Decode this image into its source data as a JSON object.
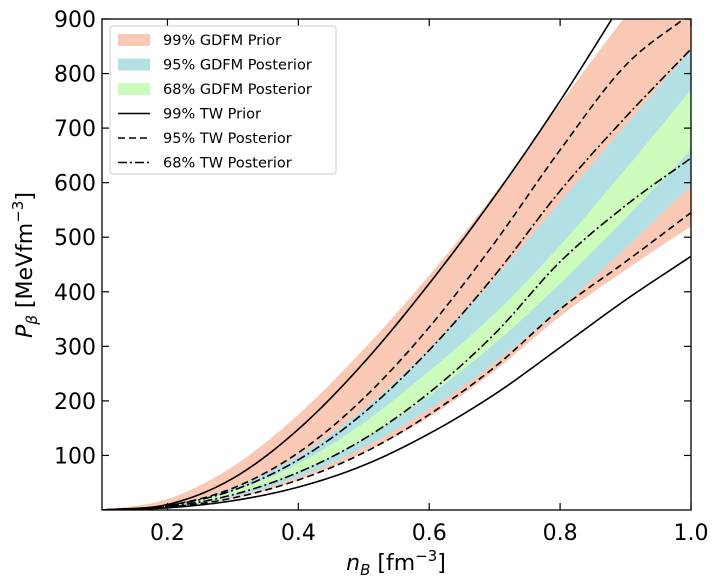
{
  "chart_data": {
    "type": "area",
    "xlabel": {
      "main": "n",
      "sub": "B",
      "unit_open": " [fm",
      "unit_sup": "−3",
      "unit_close": "]"
    },
    "ylabel": {
      "main": "P",
      "sub": "β",
      "unit_open": " [MeVfm",
      "unit_sup": "−3",
      "unit_close": "]"
    },
    "xlim": [
      0.1,
      1.0
    ],
    "ylim": [
      0,
      900
    ],
    "xticks": [
      0.2,
      0.4,
      0.6,
      0.8,
      1.0
    ],
    "xtick_labels": [
      "0.2",
      "0.4",
      "0.6",
      "0.8",
      "1.0"
    ],
    "yticks": [
      100,
      200,
      300,
      400,
      500,
      600,
      700,
      800,
      900
    ],
    "ytick_labels": [
      "100",
      "200",
      "300",
      "400",
      "500",
      "600",
      "700",
      "800",
      "900"
    ],
    "grid": false,
    "legend_position": "top-left",
    "x": [
      0.1,
      0.2,
      0.3,
      0.4,
      0.5,
      0.6,
      0.7,
      0.8,
      0.9,
      1.0
    ],
    "bands": [
      {
        "name": "99% GDFM Prior",
        "color": "#f9c9b6",
        "lower": [
          0,
          5,
          20,
          55,
          105,
          170,
          255,
          355,
          440,
          520
        ],
        "upper": [
          0,
          20,
          80,
          175,
          295,
          430,
          580,
          745,
          905,
          1050
        ]
      },
      {
        "name": "95% GDFM Posterior",
        "color": "#b3e0e4",
        "lower": [
          0,
          5,
          24,
          60,
          115,
          185,
          270,
          370,
          480,
          595
        ],
        "upper": [
          0,
          10,
          40,
          100,
          185,
          295,
          425,
          565,
          705,
          845
        ]
      },
      {
        "name": "68% GDFM Posterior",
        "color": "#ccfbbc",
        "lower": [
          0,
          6,
          28,
          70,
          130,
          210,
          305,
          415,
          535,
          660
        ],
        "upper": [
          0,
          8,
          35,
          85,
          160,
          255,
          360,
          485,
          625,
          770
        ]
      }
    ],
    "lines": [
      {
        "name": "99% TW Prior",
        "dash": "solid",
        "curves": [
          [
            0,
            10,
            58,
            148,
            270,
            415,
            575,
            750,
            940,
            1130
          ],
          [
            0,
            4,
            17,
            42,
            82,
            140,
            212,
            298,
            385,
            465
          ]
        ]
      },
      {
        "name": "95% TW Posterior",
        "dash": "dashed",
        "curves": [
          [
            0,
            8,
            40,
            105,
            205,
            335,
            490,
            660,
            815,
            910
          ],
          [
            0,
            5,
            22,
            55,
            105,
            175,
            262,
            368,
            455,
            545
          ]
        ]
      },
      {
        "name": "68% TW Posterior",
        "dash": "dashdot",
        "curves": [
          [
            0,
            8,
            36,
            92,
            178,
            293,
            430,
            585,
            720,
            845
          ],
          [
            0,
            6,
            28,
            69,
            130,
            215,
            323,
            455,
            558,
            645
          ]
        ]
      }
    ]
  }
}
